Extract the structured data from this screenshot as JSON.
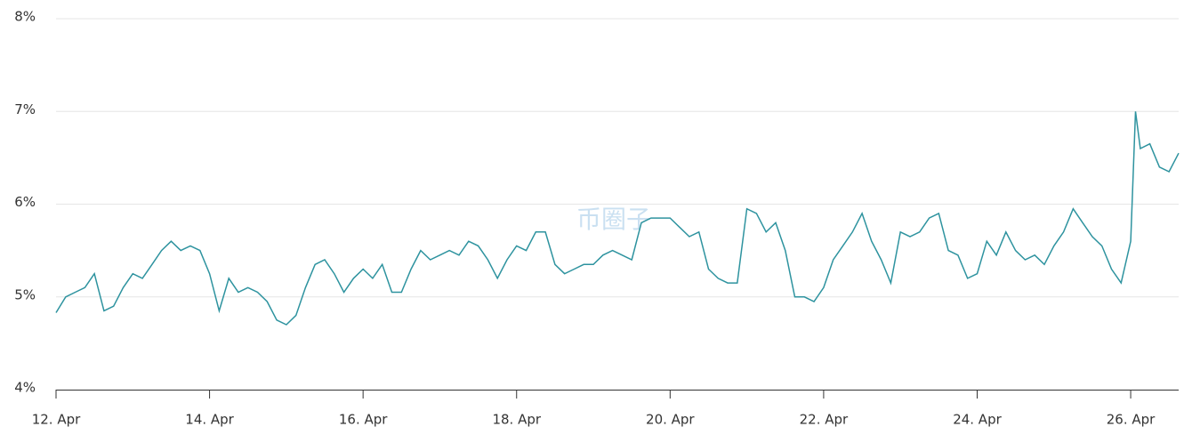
{
  "chart_data": {
    "type": "line",
    "watermark": "币圈子",
    "x": [
      12.0,
      12.125,
      12.25,
      12.375,
      12.5,
      12.625,
      12.75,
      12.875,
      13.0,
      13.125,
      13.25,
      13.375,
      13.5,
      13.625,
      13.75,
      13.875,
      14.0,
      14.125,
      14.25,
      14.375,
      14.5,
      14.625,
      14.75,
      14.875,
      15.0,
      15.125,
      15.25,
      15.375,
      15.5,
      15.625,
      15.75,
      15.875,
      16.0,
      16.125,
      16.25,
      16.375,
      16.5,
      16.625,
      16.75,
      16.875,
      17.0,
      17.125,
      17.25,
      17.375,
      17.5,
      17.625,
      17.75,
      17.875,
      18.0,
      18.125,
      18.25,
      18.375,
      18.5,
      18.625,
      18.75,
      18.875,
      19.0,
      19.125,
      19.25,
      19.375,
      19.5,
      19.625,
      19.75,
      19.875,
      20.0,
      20.125,
      20.25,
      20.375,
      20.5,
      20.625,
      20.75,
      20.875,
      21.0,
      21.125,
      21.25,
      21.375,
      21.5,
      21.625,
      21.75,
      21.875,
      22.0,
      22.125,
      22.25,
      22.375,
      22.5,
      22.625,
      22.75,
      22.875,
      23.0,
      23.125,
      23.25,
      23.375,
      23.5,
      23.625,
      23.75,
      23.875,
      24.0,
      24.125,
      24.25,
      24.375,
      24.5,
      24.625,
      24.75,
      24.875,
      25.0,
      25.125,
      25.25,
      25.375,
      25.5,
      25.625,
      25.75,
      25.875,
      26.0,
      26.0625,
      26.125,
      26.25,
      26.375,
      26.5,
      26.625
    ],
    "series": [
      {
        "color": "#2e939f",
        "values": [
          4.83,
          5.0,
          5.05,
          5.1,
          5.25,
          4.85,
          4.9,
          5.1,
          5.25,
          5.2,
          5.35,
          5.5,
          5.6,
          5.5,
          5.55,
          5.5,
          5.25,
          4.85,
          5.2,
          5.05,
          5.1,
          5.05,
          4.95,
          4.75,
          4.7,
          4.8,
          5.1,
          5.35,
          5.4,
          5.25,
          5.05,
          5.2,
          5.3,
          5.2,
          5.35,
          5.05,
          5.05,
          5.3,
          5.5,
          5.4,
          5.45,
          5.5,
          5.45,
          5.6,
          5.55,
          5.4,
          5.2,
          5.4,
          5.55,
          5.5,
          5.7,
          5.7,
          5.35,
          5.25,
          5.3,
          5.35,
          5.35,
          5.45,
          5.5,
          5.45,
          5.4,
          5.8,
          5.85,
          5.85,
          5.85,
          5.75,
          5.65,
          5.7,
          5.3,
          5.2,
          5.15,
          5.15,
          5.95,
          5.9,
          5.7,
          5.8,
          5.5,
          5.0,
          5.0,
          4.95,
          5.1,
          5.4,
          5.55,
          5.7,
          5.9,
          5.6,
          5.4,
          5.15,
          5.7,
          5.65,
          5.7,
          5.85,
          5.9,
          5.5,
          5.45,
          5.2,
          5.25,
          5.6,
          5.45,
          5.7,
          5.5,
          5.4,
          5.45,
          5.35,
          5.55,
          5.7,
          5.95,
          5.8,
          5.65,
          5.55,
          5.3,
          5.15,
          5.6,
          7.0,
          6.6,
          6.65,
          6.4,
          6.35,
          6.55
        ]
      }
    ],
    "xlim": [
      12,
      26.625
    ],
    "xticks": [
      {
        "value": 12,
        "label": "12. Apr"
      },
      {
        "value": 14,
        "label": "14. Apr"
      },
      {
        "value": 16,
        "label": "16. Apr"
      },
      {
        "value": 18,
        "label": "18. Apr"
      },
      {
        "value": 20,
        "label": "20. Apr"
      },
      {
        "value": 22,
        "label": "22. Apr"
      },
      {
        "value": 24,
        "label": "24. Apr"
      },
      {
        "value": 26,
        "label": "26. Apr"
      }
    ],
    "ylim": [
      4,
      8
    ],
    "yticks": [
      {
        "value": 4,
        "label": "4%"
      },
      {
        "value": 5,
        "label": "5%"
      },
      {
        "value": 6,
        "label": "6%"
      },
      {
        "value": 7,
        "label": "7%"
      },
      {
        "value": 8,
        "label": "8%"
      }
    ],
    "grid": true
  }
}
